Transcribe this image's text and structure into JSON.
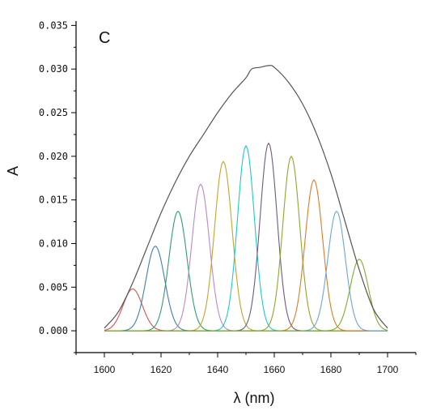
{
  "chart_data": {
    "type": "line",
    "panel_label": "C",
    "xlabel": "λ (nm)",
    "ylabel": "A",
    "xlim": [
      1590,
      1710
    ],
    "ylim": [
      -0.0025,
      0.0355
    ],
    "xticks": [
      1600,
      1620,
      1640,
      1660,
      1680,
      1700
    ],
    "xtick_labels": [
      "1600",
      "1620",
      "1640",
      "1660",
      "1680",
      "1700"
    ],
    "yticks": [
      0.0,
      0.005,
      0.01,
      0.015,
      0.02,
      0.025,
      0.03,
      0.035
    ],
    "ytick_labels": [
      "0.000",
      "0.005",
      "0.010",
      "0.015",
      "0.020",
      "0.025",
      "0.030",
      "0.035"
    ],
    "grid": false,
    "legend": "none",
    "envelope": {
      "color": "#555555",
      "x": [
        1600,
        1605,
        1610,
        1615,
        1620,
        1625,
        1630,
        1635,
        1640,
        1645,
        1650,
        1652,
        1655,
        1658,
        1660,
        1665,
        1670,
        1675,
        1680,
        1685,
        1690,
        1695,
        1700
      ],
      "y": [
        0.0003,
        0.0022,
        0.0055,
        0.0095,
        0.0135,
        0.017,
        0.02,
        0.0225,
        0.025,
        0.0272,
        0.029,
        0.03,
        0.0302,
        0.0304,
        0.0302,
        0.0285,
        0.026,
        0.0225,
        0.018,
        0.0125,
        0.007,
        0.0025,
        0.0003
      ]
    },
    "series": [
      {
        "color": "#d9534f",
        "center": 1610,
        "peak": 0.0048,
        "sigma": 3.4
      },
      {
        "color": "#3f7fb8",
        "center": 1618,
        "peak": 0.0097,
        "sigma": 3.3
      },
      {
        "color": "#2e9e6e",
        "center": 1626,
        "peak": 0.0137,
        "sigma": 3.2
      },
      {
        "color": "#b88ac9",
        "center": 1634,
        "peak": 0.0168,
        "sigma": 3.1
      },
      {
        "color": "#c9a227",
        "center": 1642,
        "peak": 0.0194,
        "sigma": 3.1
      },
      {
        "color": "#19c9d6",
        "center": 1650,
        "peak": 0.0212,
        "sigma": 3.0
      },
      {
        "color": "#6e5a7e",
        "center": 1658,
        "peak": 0.0215,
        "sigma": 3.0
      },
      {
        "color": "#8fa82a",
        "center": 1666,
        "peak": 0.02,
        "sigma": 3.0
      },
      {
        "color": "#e07b22",
        "center": 1674,
        "peak": 0.0173,
        "sigma": 3.1
      },
      {
        "color": "#6aa6d6",
        "center": 1682,
        "peak": 0.0137,
        "sigma": 3.1
      },
      {
        "color": "#7fae2a",
        "center": 1690,
        "peak": 0.0082,
        "sigma": 3.2
      }
    ]
  }
}
